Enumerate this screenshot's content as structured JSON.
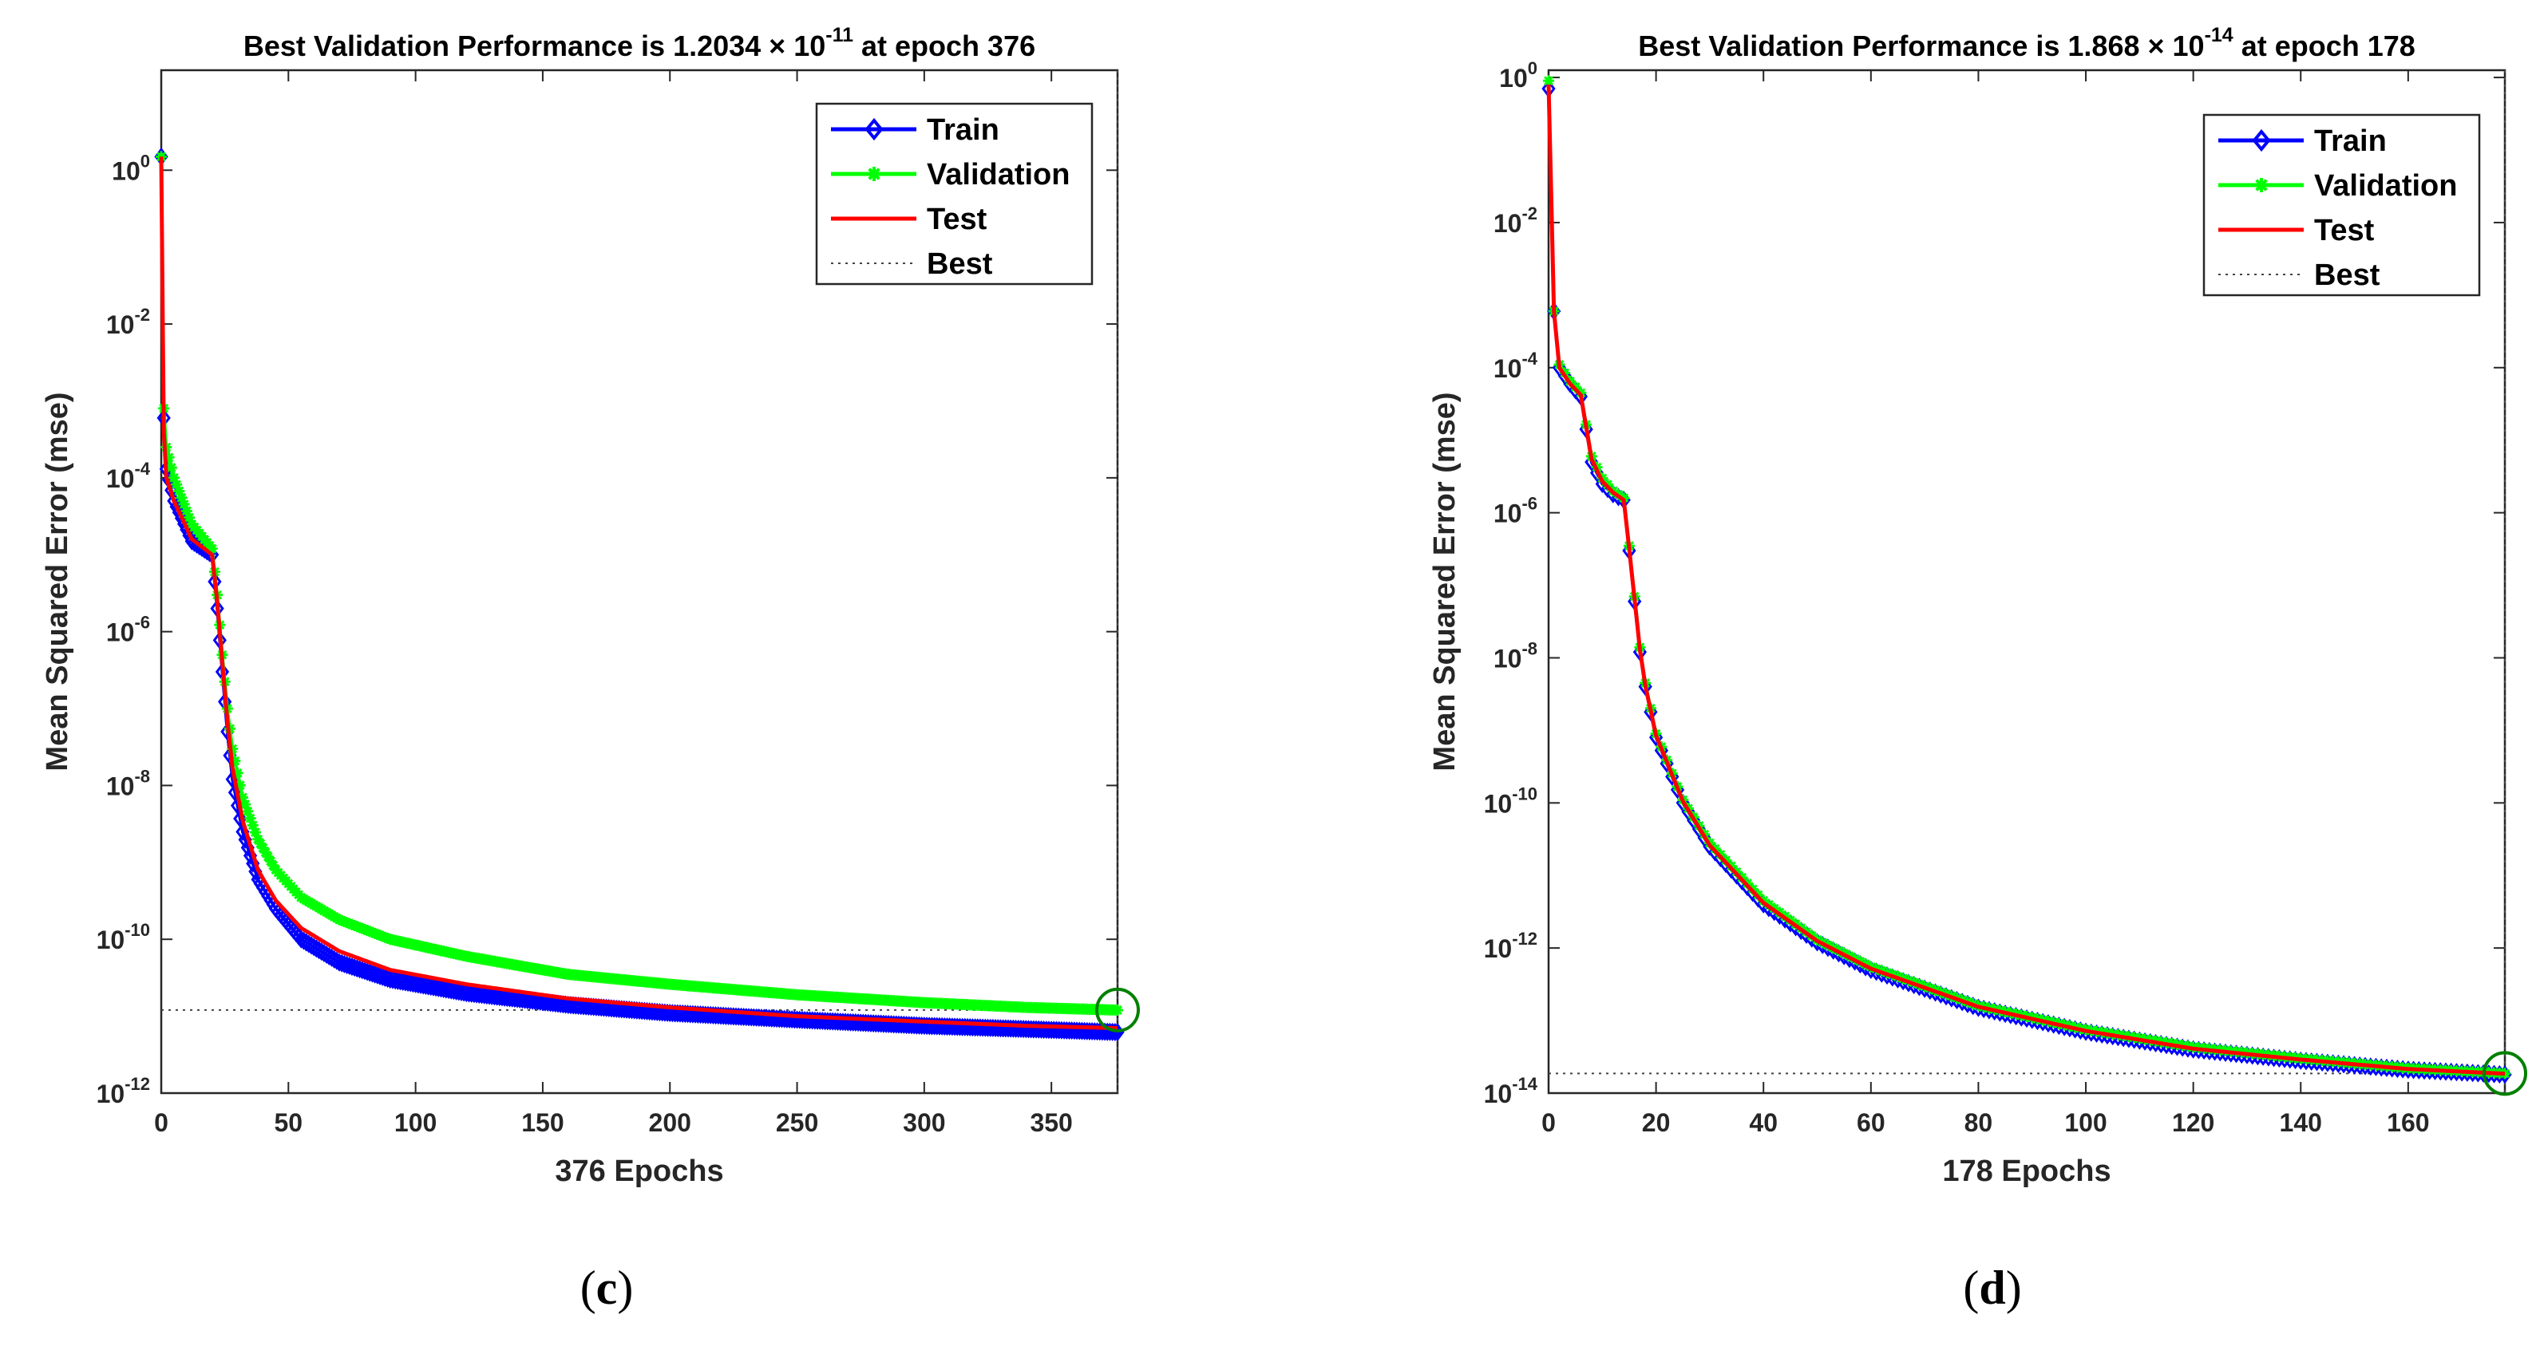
{
  "chart_data": [
    {
      "type": "line",
      "panel_label": "c",
      "title_prefix": "Best Validation Performance is 1.2034",
      "title_exponent": "-11",
      "title_suffix": "at epoch 376",
      "xlabel": "376 Epochs",
      "ylabel": "Mean Squared Error  (mse)",
      "xlim": [
        0,
        376
      ],
      "xticks": [
        0,
        50,
        100,
        150,
        200,
        250,
        300,
        350
      ],
      "ylim_log10": [
        -12,
        1.3
      ],
      "yticks_log10": [
        0,
        -2,
        -4,
        -6,
        -8,
        -10,
        -12
      ],
      "best": {
        "epoch": 376,
        "value": 1.2034e-11
      },
      "legend": [
        "Train",
        "Validation",
        "Test",
        "Best"
      ],
      "series": [
        {
          "name": "Train",
          "color": "#0000ff",
          "marker": "diamond",
          "x": [
            0,
            1,
            2,
            5,
            12,
            20,
            22,
            24,
            26,
            28,
            32,
            38,
            45,
            55,
            70,
            90,
            120,
            160,
            200,
            250,
            300,
            340,
            376
          ],
          "y": [
            1.5,
            0.0006,
            0.00013,
            5e-05,
            1.5e-05,
            1e-05,
            2e-06,
            3e-07,
            5e-08,
            1.2e-08,
            2.5e-09,
            6e-10,
            2.5e-10,
            1e-10,
            5e-11,
            3e-11,
            2e-11,
            1.4e-11,
            1.1e-11,
            9e-12,
            7.5e-12,
            6.8e-12,
            6.2e-12
          ]
        },
        {
          "name": "Validation",
          "color": "#00ff00",
          "marker": "star",
          "x": [
            0,
            1,
            2,
            5,
            12,
            20,
            22,
            24,
            26,
            28,
            32,
            38,
            45,
            55,
            70,
            90,
            120,
            160,
            200,
            250,
            300,
            340,
            376
          ],
          "y": [
            1.5,
            0.0008,
            0.00025,
            0.0001,
            2.5e-05,
            1.2e-05,
            3e-06,
            5e-07,
            1e-07,
            3e-08,
            7e-09,
            2e-09,
            8e-10,
            3.5e-10,
            1.8e-10,
            1e-10,
            6e-11,
            3.5e-11,
            2.6e-11,
            1.9e-11,
            1.5e-11,
            1.3e-11,
            1.2e-11
          ]
        },
        {
          "name": "Test",
          "color": "#ff0000",
          "marker": "none",
          "x": [
            0,
            1,
            2,
            5,
            12,
            20,
            22,
            24,
            26,
            28,
            32,
            38,
            45,
            55,
            70,
            90,
            120,
            160,
            200,
            250,
            300,
            340,
            376
          ],
          "y": [
            1.5,
            0.0004,
            0.0001,
            5e-05,
            1.6e-05,
            1e-05,
            2.5e-06,
            4e-07,
            7e-08,
            1.7e-08,
            3.5e-09,
            8e-10,
            3.2e-10,
            1.4e-10,
            7e-11,
            4e-11,
            2.6e-11,
            1.7e-11,
            1.3e-11,
            1e-11,
            8.5e-12,
            7.5e-12,
            7e-12
          ]
        }
      ]
    },
    {
      "type": "line",
      "panel_label": "d",
      "title_prefix": "Best Validation Performance is 1.868",
      "title_exponent": "-14",
      "title_suffix": "at epoch 178",
      "xlabel": "178 Epochs",
      "ylabel": "Mean Squared Error  (mse)",
      "xlim": [
        0,
        178
      ],
      "xticks": [
        0,
        20,
        40,
        60,
        80,
        100,
        120,
        140,
        160
      ],
      "ylim_log10": [
        -14,
        0.1
      ],
      "yticks_log10": [
        0,
        -2,
        -4,
        -6,
        -8,
        -10,
        -12,
        -14
      ],
      "best": {
        "epoch": 178,
        "value": 1.868e-14
      },
      "legend": [
        "Train",
        "Validation",
        "Test",
        "Best"
      ],
      "series": [
        {
          "name": "Train",
          "color": "#0000ff",
          "marker": "diamond",
          "x": [
            0,
            1,
            2,
            4,
            6,
            8,
            10,
            12,
            14,
            15,
            16,
            17,
            18,
            20,
            25,
            30,
            40,
            50,
            60,
            80,
            100,
            120,
            140,
            160,
            178
          ],
          "y": [
            0.7,
            0.0006,
            0.0001,
            6e-05,
            4e-05,
            5e-06,
            2.5e-06,
            1.8e-06,
            1.5e-06,
            3e-07,
            6e-08,
            1.2e-08,
            4e-09,
            8e-10,
            1e-10,
            2.5e-11,
            4e-12,
            1.2e-12,
            5e-13,
            1.5e-13,
            7e-14,
            4e-14,
            2.8e-14,
            2.1e-14,
            1.8e-14
          ]
        },
        {
          "name": "Validation",
          "color": "#00ff00",
          "marker": "star",
          "x": [
            0,
            1,
            2,
            4,
            6,
            8,
            10,
            12,
            14,
            15,
            16,
            17,
            18,
            20,
            25,
            30,
            40,
            50,
            60,
            80,
            100,
            120,
            140,
            160,
            178
          ],
          "y": [
            0.9,
            0.0006,
            0.00011,
            6.5e-05,
            4.5e-05,
            6e-06,
            3e-06,
            2e-06,
            1.6e-06,
            3.5e-07,
            7e-08,
            1.4e-08,
            4.5e-09,
            9e-10,
            1.1e-10,
            2.8e-11,
            4.5e-12,
            1.3e-12,
            5.5e-13,
            1.6e-13,
            7.5e-14,
            4.3e-14,
            3e-14,
            2.2e-14,
            1.868e-14
          ]
        },
        {
          "name": "Test",
          "color": "#ff0000",
          "marker": "none",
          "x": [
            0,
            1,
            2,
            4,
            6,
            8,
            10,
            12,
            14,
            15,
            16,
            17,
            18,
            20,
            25,
            30,
            40,
            50,
            60,
            80,
            100,
            120,
            140,
            160,
            178
          ],
          "y": [
            0.8,
            0.0006,
            0.0001,
            6e-05,
            4.2e-05,
            5.5e-06,
            2.7e-06,
            1.9e-06,
            1.5e-06,
            3.2e-07,
            6.5e-08,
            1.3e-08,
            4.2e-09,
            8.5e-10,
            1.05e-10,
            2.6e-11,
            4.2e-12,
            1.25e-12,
            5.2e-13,
            1.55e-13,
            7.2e-14,
            4.1e-14,
            2.9e-14,
            2.15e-14,
            1.85e-14
          ]
        }
      ]
    }
  ]
}
